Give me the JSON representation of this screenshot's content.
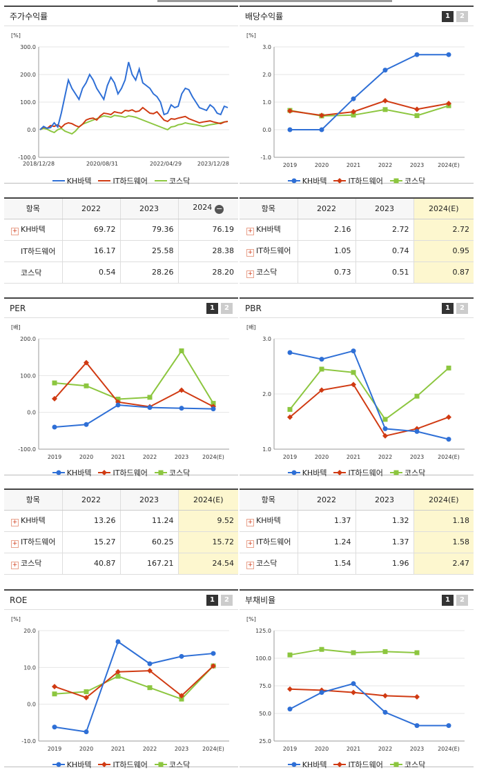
{
  "colors": {
    "kh": "#2e6fd6",
    "it": "#d03a12",
    "kosdaq": "#8cc63f"
  },
  "legend": [
    "KH바텍",
    "IT하드웨어",
    "코스닥"
  ],
  "tabs": [
    "1",
    "2"
  ],
  "panels": {
    "price": {
      "title": "주가수익률",
      "unit": "[%]",
      "y_ticks": [
        "300.0",
        "200.0",
        "100.0",
        "0.0",
        "-100.0"
      ],
      "x_ticks": [
        "2018/12/28",
        "2020/08/31",
        "2022/04/29",
        "2023/12/28"
      ]
    },
    "dividend": {
      "title": "배당수익률",
      "unit": "[%]",
      "y_ticks": [
        "3.0",
        "2.0",
        "1.0",
        "0.0",
        "-1.0"
      ],
      "x_ticks": [
        "2019",
        "2020",
        "2021",
        "2022",
        "2023",
        "2024(E)"
      ]
    },
    "per": {
      "title": "PER",
      "unit": "[배]",
      "y_ticks": [
        "200.0",
        "100.0",
        "0.0",
        "-100.0"
      ],
      "x_ticks": [
        "2019",
        "2020",
        "2021",
        "2022",
        "2023",
        "2024(E)"
      ]
    },
    "pbr": {
      "title": "PBR",
      "unit": "[배]",
      "y_ticks": [
        "3.0",
        "2.0",
        "1.0"
      ],
      "x_ticks": [
        "2019",
        "2020",
        "2021",
        "2022",
        "2023",
        "2024(E)"
      ]
    },
    "roe": {
      "title": "ROE",
      "unit": "[%]",
      "y_ticks": [
        "20.0",
        "10.0",
        "0.0",
        "-10.0"
      ],
      "x_ticks": [
        "2019",
        "2020",
        "2021",
        "2022",
        "2023",
        "2024(E)"
      ]
    },
    "debt": {
      "title": "부채비율",
      "unit": "[%]",
      "y_ticks": [
        "125.0",
        "100.0",
        "75.0",
        "50.0",
        "25.0"
      ],
      "x_ticks": [
        "2019",
        "2020",
        "2021",
        "2022",
        "2023",
        "2024(E)"
      ]
    }
  },
  "tables": {
    "price": {
      "headers": [
        "항목",
        "2022",
        "2023",
        "2024"
      ],
      "rows": [
        {
          "name": "KH바텍",
          "plus": true,
          "values": [
            "69.72",
            "79.36",
            "76.19"
          ]
        },
        {
          "name": "IT하드웨어",
          "plus": false,
          "values": [
            "16.17",
            "25.58",
            "28.38"
          ]
        },
        {
          "name": "코스닥",
          "plus": false,
          "values": [
            "0.54",
            "28.26",
            "28.20"
          ]
        }
      ]
    },
    "dividend": {
      "headers": [
        "항목",
        "2022",
        "2023",
        "2024(E)"
      ],
      "rows": [
        {
          "name": "KH바텍",
          "plus": true,
          "values": [
            "2.16",
            "2.72",
            "2.72"
          ]
        },
        {
          "name": "IT하드웨어",
          "plus": true,
          "values": [
            "1.05",
            "0.74",
            "0.95"
          ]
        },
        {
          "name": "코스닥",
          "plus": true,
          "values": [
            "0.73",
            "0.51",
            "0.87"
          ]
        }
      ]
    },
    "per": {
      "headers": [
        "항목",
        "2022",
        "2023",
        "2024(E)"
      ],
      "rows": [
        {
          "name": "KH바텍",
          "plus": true,
          "values": [
            "13.26",
            "11.24",
            "9.52"
          ]
        },
        {
          "name": "IT하드웨어",
          "plus": true,
          "values": [
            "15.27",
            "60.25",
            "15.72"
          ]
        },
        {
          "name": "코스닥",
          "plus": true,
          "values": [
            "40.87",
            "167.21",
            "24.54"
          ]
        }
      ]
    },
    "pbr": {
      "headers": [
        "항목",
        "2022",
        "2023",
        "2024(E)"
      ],
      "rows": [
        {
          "name": "KH바텍",
          "plus": true,
          "values": [
            "1.37",
            "1.32",
            "1.18"
          ]
        },
        {
          "name": "IT하드웨어",
          "plus": true,
          "values": [
            "1.24",
            "1.37",
            "1.58"
          ]
        },
        {
          "name": "코스닥",
          "plus": true,
          "values": [
            "1.54",
            "1.96",
            "2.47"
          ]
        }
      ]
    }
  },
  "chart_data": [
    {
      "type": "line",
      "title": "주가수익률",
      "ylabel": "[%]",
      "ylim": [
        -100,
        300
      ],
      "x_tick_labels": [
        "2018/12/28",
        "2020/08/31",
        "2022/04/29",
        "2023/12/28"
      ],
      "series": [
        {
          "name": "KH바텍",
          "values": [
            0,
            12,
            5,
            8,
            25,
            10,
            60,
            120,
            180,
            150,
            130,
            110,
            150,
            170,
            200,
            180,
            150,
            130,
            110,
            160,
            190,
            170,
            130,
            150,
            180,
            245,
            200,
            180,
            220,
            170,
            160,
            150,
            130,
            120,
            100,
            55,
            60,
            90,
            80,
            85,
            130,
            150,
            145,
            120,
            100,
            80,
            75,
            70,
            90,
            80,
            60,
            55,
            85,
            80
          ]
        },
        {
          "name": "IT하드웨어",
          "values": [
            0,
            10,
            5,
            15,
            12,
            18,
            8,
            20,
            25,
            22,
            15,
            10,
            20,
            35,
            40,
            42,
            35,
            50,
            60,
            58,
            55,
            65,
            62,
            60,
            70,
            68,
            72,
            65,
            68,
            80,
            70,
            60,
            58,
            65,
            50,
            35,
            30,
            40,
            38,
            42,
            45,
            48,
            40,
            35,
            30,
            25,
            28,
            30,
            32,
            28,
            25,
            22,
            28,
            30
          ]
        },
        {
          "name": "코스닥",
          "values": [
            0,
            5,
            2,
            -5,
            -10,
            0,
            5,
            -5,
            -10,
            -15,
            -5,
            10,
            20,
            25,
            30,
            35,
            40,
            45,
            50,
            48,
            45,
            52,
            50,
            48,
            45,
            50,
            48,
            45,
            40,
            35,
            30,
            25,
            20,
            15,
            10,
            5,
            0,
            10,
            12,
            18,
            20,
            25,
            22,
            20,
            18,
            15,
            12,
            15,
            18,
            20,
            22,
            25,
            28,
            30
          ]
        }
      ]
    },
    {
      "type": "line",
      "title": "배당수익률",
      "ylabel": "[%]",
      "ylim": [
        -1,
        3
      ],
      "categories": [
        "2019",
        "2020",
        "2021",
        "2022",
        "2023",
        "2024(E)"
      ],
      "series": [
        {
          "name": "KH바텍",
          "values": [
            0.0,
            0.0,
            1.12,
            2.16,
            2.72,
            2.72
          ]
        },
        {
          "name": "IT하드웨어",
          "values": [
            0.68,
            0.52,
            0.65,
            1.05,
            0.74,
            0.95
          ]
        },
        {
          "name": "코스닥",
          "values": [
            0.7,
            0.5,
            0.53,
            0.73,
            0.51,
            0.87
          ]
        }
      ]
    },
    {
      "type": "line",
      "title": "PER",
      "ylabel": "[배]",
      "ylim": [
        -100,
        200
      ],
      "categories": [
        "2019",
        "2020",
        "2021",
        "2022",
        "2023",
        "2024(E)"
      ],
      "series": [
        {
          "name": "KH바텍",
          "values": [
            -40,
            -33,
            20,
            13.26,
            11.24,
            9.52
          ]
        },
        {
          "name": "IT하드웨어",
          "values": [
            37,
            135,
            28,
            15.27,
            60.25,
            15.72
          ]
        },
        {
          "name": "코스닥",
          "values": [
            80,
            72,
            36,
            40.87,
            167.21,
            24.54
          ]
        }
      ]
    },
    {
      "type": "line",
      "title": "PBR",
      "ylabel": "[배]",
      "ylim": [
        1,
        3
      ],
      "categories": [
        "2019",
        "2020",
        "2021",
        "2022",
        "2023",
        "2024(E)"
      ],
      "series": [
        {
          "name": "KH바텍",
          "values": [
            2.75,
            2.63,
            2.78,
            1.37,
            1.32,
            1.18
          ]
        },
        {
          "name": "IT하드웨어",
          "values": [
            1.58,
            2.07,
            2.17,
            1.24,
            1.37,
            1.58
          ]
        },
        {
          "name": "코스닥",
          "values": [
            1.72,
            2.45,
            2.39,
            1.54,
            1.96,
            2.47
          ]
        }
      ]
    },
    {
      "type": "line",
      "title": "ROE",
      "ylabel": "[%]",
      "ylim": [
        -10,
        20
      ],
      "categories": [
        "2019",
        "2020",
        "2021",
        "2022",
        "2023",
        "2024(E)"
      ],
      "series": [
        {
          "name": "KH바텍",
          "values": [
            -6.2,
            -7.5,
            17.0,
            11.0,
            13.0,
            13.8
          ]
        },
        {
          "name": "IT하드웨어",
          "values": [
            4.8,
            1.8,
            8.8,
            9.1,
            2.3,
            10.4
          ]
        },
        {
          "name": "코스닥",
          "values": [
            2.8,
            3.4,
            7.6,
            4.5,
            1.4,
            10.4
          ]
        }
      ]
    },
    {
      "type": "line",
      "title": "부채비율",
      "ylabel": "[%]",
      "ylim": [
        25,
        125
      ],
      "categories": [
        "2019",
        "2020",
        "2021",
        "2022",
        "2023",
        "2024(E)"
      ],
      "series": [
        {
          "name": "KH바텍",
          "values": [
            54,
            69,
            77,
            51,
            39,
            39
          ]
        },
        {
          "name": "IT하드웨어",
          "values": [
            72,
            71,
            69,
            66,
            65,
            null
          ]
        },
        {
          "name": "코스닥",
          "values": [
            103,
            108,
            105,
            106,
            105,
            null
          ]
        }
      ]
    }
  ]
}
